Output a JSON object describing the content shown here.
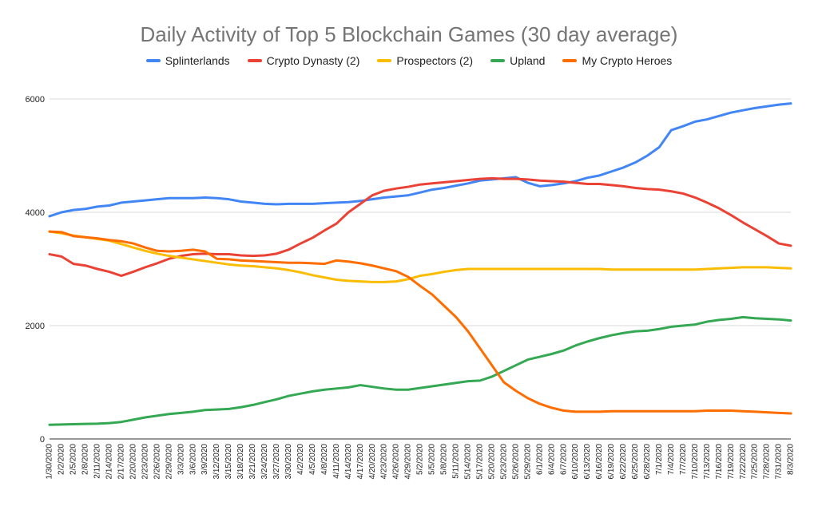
{
  "chart_data": {
    "type": "line",
    "title": "Daily Activity of Top 5 Blockchain Games (30 day average)",
    "xlabel": "",
    "ylabel": "",
    "ylim": [
      0,
      6000
    ],
    "yticks": [
      0,
      2000,
      4000,
      6000
    ],
    "grid": true,
    "legend_position": "top",
    "x_tick_labels": [
      "1/30/2020",
      "2/2/2020",
      "2/5/2020",
      "2/8/2020",
      "2/11/2020",
      "2/14/2020",
      "2/17/2020",
      "2/20/2020",
      "2/23/2020",
      "2/26/2020",
      "2/29/2020",
      "3/3/2020",
      "3/6/2020",
      "3/9/2020",
      "3/12/2020",
      "3/15/2020",
      "3/18/2020",
      "3/21/2020",
      "3/24/2020",
      "3/27/2020",
      "3/30/2020",
      "4/2/2020",
      "4/5/2020",
      "4/8/2020",
      "4/11/2020",
      "4/14/2020",
      "4/17/2020",
      "4/20/2020",
      "4/23/2020",
      "4/26/2020",
      "4/29/2020",
      "5/2/2020",
      "5/5/2020",
      "5/8/2020",
      "5/11/2020",
      "5/14/2020",
      "5/17/2020",
      "5/20/2020",
      "5/23/2020",
      "5/26/2020",
      "5/29/2020",
      "6/1/2020",
      "6/4/2020",
      "6/7/2020",
      "6/10/2020",
      "6/13/2020",
      "6/16/2020",
      "6/19/2020",
      "6/22/2020",
      "6/25/2020",
      "6/28/2020",
      "7/1/2020",
      "7/4/2020",
      "7/7/2020",
      "7/10/2020",
      "7/13/2020",
      "7/16/2020",
      "7/19/2020",
      "7/22/2020",
      "7/25/2020",
      "7/28/2020",
      "7/31/2020",
      "8/3/2020"
    ],
    "series": [
      {
        "name": "Splinterlands",
        "color": "#4285f4",
        "values": [
          3930,
          4000,
          4040,
          4060,
          4100,
          4120,
          4170,
          4190,
          4210,
          4230,
          4250,
          4250,
          4250,
          4260,
          4250,
          4230,
          4190,
          4170,
          4150,
          4140,
          4150,
          4150,
          4150,
          4160,
          4170,
          4180,
          4200,
          4230,
          4260,
          4280,
          4300,
          4350,
          4400,
          4430,
          4470,
          4510,
          4560,
          4580,
          4600,
          4620,
          4520,
          4460,
          4480,
          4510,
          4550,
          4610,
          4650,
          4720,
          4790,
          4880,
          5000,
          5150,
          5450,
          5520,
          5600,
          5640,
          5700,
          5760,
          5800,
          5840,
          5870,
          5900,
          5920
        ]
      },
      {
        "name": "Crypto Dynasty (2)",
        "color": "#ea4335",
        "values": [
          3260,
          3220,
          3090,
          3060,
          3000,
          2950,
          2880,
          2950,
          3030,
          3100,
          3180,
          3230,
          3260,
          3270,
          3260,
          3260,
          3240,
          3230,
          3240,
          3270,
          3340,
          3450,
          3550,
          3680,
          3800,
          4000,
          4150,
          4300,
          4380,
          4420,
          4450,
          4490,
          4510,
          4530,
          4550,
          4570,
          4590,
          4600,
          4590,
          4590,
          4580,
          4560,
          4550,
          4540,
          4520,
          4500,
          4500,
          4480,
          4460,
          4430,
          4410,
          4400,
          4370,
          4330,
          4260,
          4170,
          4070,
          3950,
          3820,
          3700,
          3580,
          3450,
          3410
        ]
      },
      {
        "name": "Prospectors (2)",
        "color": "#fbbc04",
        "values": [
          3660,
          3630,
          3590,
          3560,
          3530,
          3500,
          3440,
          3380,
          3320,
          3270,
          3230,
          3200,
          3170,
          3140,
          3110,
          3080,
          3060,
          3050,
          3030,
          3010,
          2980,
          2940,
          2890,
          2850,
          2810,
          2790,
          2780,
          2770,
          2770,
          2780,
          2820,
          2880,
          2910,
          2950,
          2980,
          3000,
          3000,
          3000,
          3000,
          3000,
          3000,
          3000,
          3000,
          3000,
          3000,
          3000,
          3000,
          2990,
          2990,
          2990,
          2990,
          2990,
          2990,
          2990,
          2990,
          3000,
          3010,
          3020,
          3030,
          3030,
          3030,
          3020,
          3010
        ]
      },
      {
        "name": "Upland",
        "color": "#34a853",
        "values": [
          250,
          255,
          260,
          265,
          270,
          280,
          300,
          340,
          380,
          410,
          440,
          460,
          480,
          510,
          520,
          530,
          560,
          600,
          650,
          700,
          760,
          800,
          840,
          870,
          890,
          910,
          950,
          920,
          890,
          870,
          870,
          900,
          930,
          960,
          990,
          1020,
          1030,
          1100,
          1200,
          1300,
          1400,
          1450,
          1500,
          1560,
          1650,
          1720,
          1780,
          1830,
          1870,
          1900,
          1910,
          1940,
          1980,
          2000,
          2020,
          2070,
          2100,
          2120,
          2150,
          2130,
          2120,
          2110,
          2090
        ]
      },
      {
        "name": "My Crypto Heroes",
        "color": "#ff6d01",
        "values": [
          3660,
          3650,
          3580,
          3560,
          3540,
          3510,
          3490,
          3450,
          3380,
          3320,
          3310,
          3320,
          3340,
          3310,
          3180,
          3170,
          3150,
          3140,
          3130,
          3120,
          3110,
          3110,
          3100,
          3090,
          3150,
          3130,
          3100,
          3060,
          3010,
          2960,
          2860,
          2700,
          2550,
          2350,
          2150,
          1900,
          1600,
          1300,
          1000,
          850,
          720,
          620,
          550,
          500,
          480,
          480,
          480,
          490,
          490,
          490,
          490,
          490,
          490,
          490,
          490,
          500,
          500,
          500,
          490,
          480,
          470,
          460,
          450
        ]
      }
    ]
  }
}
